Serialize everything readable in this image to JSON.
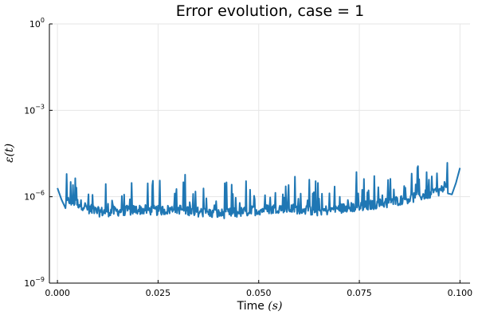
{
  "chart_data": {
    "type": "line",
    "title": "Error evolution, case = 1",
    "xlabel": "Time",
    "xlabel_unit": "(s)",
    "ylabel": "ε(t)",
    "y_scale": "log",
    "xlim": [
      -0.002,
      0.1025
    ],
    "ylim": [
      1e-09,
      1
    ],
    "x_ticks": [
      {
        "value": 0.0,
        "label": "0.000"
      },
      {
        "value": 0.025,
        "label": "0.025"
      },
      {
        "value": 0.05,
        "label": "0.050"
      },
      {
        "value": 0.075,
        "label": "0.075"
      },
      {
        "value": 0.1,
        "label": "0.100"
      }
    ],
    "y_ticks": [
      {
        "value": 1e-09,
        "base": "10",
        "exp": "−9"
      },
      {
        "value": 1e-06,
        "base": "10",
        "exp": "−6"
      },
      {
        "value": 0.001,
        "base": "10",
        "exp": "−3"
      },
      {
        "value": 1,
        "base": "10",
        "exp": "0"
      }
    ],
    "grid": true,
    "legend": "none",
    "series": [
      {
        "color": "#1f77b4",
        "x": [
          0.0,
          0.001,
          0.002,
          0.003,
          0.004,
          0.005,
          0.006,
          0.007,
          0.008,
          0.009,
          0.01,
          0.012,
          0.015,
          0.02,
          0.025,
          0.03,
          0.035,
          0.04,
          0.045,
          0.05,
          0.055,
          0.06,
          0.065,
          0.07,
          0.075,
          0.08,
          0.085,
          0.09,
          0.093,
          0.095,
          0.097,
          0.098,
          0.099,
          0.1
        ],
        "y": [
          2e-06,
          8e-07,
          4e-07,
          5e-07,
          4.5e-07,
          4e-07,
          3.5e-07,
          3e-07,
          2.5e-07,
          2.2e-07,
          2e-07,
          2e-07,
          2.1e-07,
          2.4e-07,
          2.2e-07,
          2.5e-07,
          2e-07,
          1.7e-07,
          1.9e-07,
          2.3e-07,
          2.7e-07,
          2.5e-07,
          2.1e-07,
          2.6e-07,
          3e-07,
          3.8e-07,
          5e-07,
          7e-07,
          9e-07,
          1.1e-06,
          1.3e-06,
          1.2e-06,
          3e-06,
          1e-05
        ]
      }
    ]
  }
}
